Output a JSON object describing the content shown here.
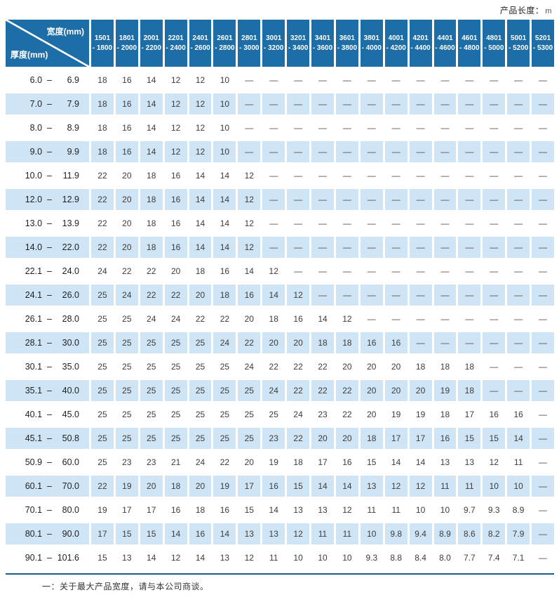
{
  "page": {
    "unit_label": "产品长度：",
    "unit": "m"
  },
  "colors": {
    "header_blue": "#1d6da6",
    "band_blue": "#cfe4f4",
    "rule_blue": "#19608f"
  },
  "table": {
    "corner": {
      "top_right": "宽度(mm)",
      "bottom_left": "厚度(mm)"
    },
    "columns": [
      {
        "line1": "1501",
        "line2": "- 1800"
      },
      {
        "line1": "1801",
        "line2": "- 2000"
      },
      {
        "line1": "2001",
        "line2": "- 2200"
      },
      {
        "line1": "2201",
        "line2": "- 2400"
      },
      {
        "line1": "2401",
        "line2": "- 2600"
      },
      {
        "line1": "2601",
        "line2": "- 2800"
      },
      {
        "line1": "2801",
        "line2": "- 3000"
      },
      {
        "line1": "3001",
        "line2": "- 3200"
      },
      {
        "line1": "3201",
        "line2": "- 3400"
      },
      {
        "line1": "3401",
        "line2": "- 3600"
      },
      {
        "line1": "3601",
        "line2": "- 3800"
      },
      {
        "line1": "3801",
        "line2": "- 4000"
      },
      {
        "line1": "4001",
        "line2": "- 4200"
      },
      {
        "line1": "4201",
        "line2": "- 4400"
      },
      {
        "line1": "4401",
        "line2": "- 4600"
      },
      {
        "line1": "4601",
        "line2": "- 4800"
      },
      {
        "line1": "4801",
        "line2": "- 5000"
      },
      {
        "line1": "5001",
        "line2": "- 5200"
      },
      {
        "line1": "5201",
        "line2": "- 5300"
      }
    ],
    "rows": [
      {
        "from": "6.0",
        "to": "6.9",
        "values": [
          "18",
          "16",
          "14",
          "12",
          "12",
          "10",
          "—",
          "—",
          "—",
          "—",
          "—",
          "—",
          "—",
          "—",
          "—",
          "—",
          "—",
          "—",
          "—"
        ]
      },
      {
        "from": "7.0",
        "to": "7.9",
        "values": [
          "18",
          "16",
          "14",
          "12",
          "12",
          "10",
          "—",
          "—",
          "—",
          "—",
          "—",
          "—",
          "—",
          "—",
          "—",
          "—",
          "—",
          "—",
          "—"
        ]
      },
      {
        "from": "8.0",
        "to": "8.9",
        "values": [
          "18",
          "16",
          "14",
          "12",
          "12",
          "10",
          "—",
          "—",
          "—",
          "—",
          "—",
          "—",
          "—",
          "—",
          "—",
          "—",
          "—",
          "—",
          "—"
        ]
      },
      {
        "from": "9.0",
        "to": "9.9",
        "values": [
          "18",
          "16",
          "14",
          "12",
          "12",
          "10",
          "—",
          "—",
          "—",
          "—",
          "—",
          "—",
          "—",
          "—",
          "—",
          "—",
          "—",
          "—",
          "—"
        ]
      },
      {
        "from": "10.0",
        "to": "11.9",
        "values": [
          "22",
          "20",
          "18",
          "16",
          "14",
          "14",
          "12",
          "—",
          "—",
          "—",
          "—",
          "—",
          "—",
          "—",
          "—",
          "—",
          "—",
          "—",
          "—"
        ]
      },
      {
        "from": "12.0",
        "to": "12.9",
        "values": [
          "22",
          "20",
          "18",
          "16",
          "14",
          "14",
          "12",
          "—",
          "—",
          "—",
          "—",
          "—",
          "—",
          "—",
          "—",
          "—",
          "—",
          "—",
          "—"
        ]
      },
      {
        "from": "13.0",
        "to": "13.9",
        "values": [
          "22",
          "20",
          "18",
          "16",
          "14",
          "14",
          "12",
          "—",
          "—",
          "—",
          "—",
          "—",
          "—",
          "—",
          "—",
          "—",
          "—",
          "—",
          "—"
        ]
      },
      {
        "from": "14.0",
        "to": "22.0",
        "values": [
          "22",
          "20",
          "18",
          "16",
          "14",
          "14",
          "12",
          "—",
          "—",
          "—",
          "—",
          "—",
          "—",
          "—",
          "—",
          "—",
          "—",
          "—",
          "—"
        ]
      },
      {
        "from": "22.1",
        "to": "24.0",
        "values": [
          "24",
          "22",
          "22",
          "20",
          "18",
          "16",
          "14",
          "12",
          "—",
          "—",
          "—",
          "—",
          "—",
          "—",
          "—",
          "—",
          "—",
          "—",
          "—"
        ]
      },
      {
        "from": "24.1",
        "to": "26.0",
        "values": [
          "25",
          "24",
          "22",
          "22",
          "20",
          "18",
          "16",
          "14",
          "12",
          "—",
          "—",
          "—",
          "—",
          "—",
          "—",
          "—",
          "—",
          "—",
          "—"
        ]
      },
      {
        "from": "26.1",
        "to": "28.0",
        "values": [
          "25",
          "25",
          "24",
          "24",
          "22",
          "22",
          "20",
          "18",
          "16",
          "14",
          "12",
          "—",
          "—",
          "—",
          "—",
          "—",
          "—",
          "—",
          "—"
        ]
      },
      {
        "from": "28.1",
        "to": "30.0",
        "values": [
          "25",
          "25",
          "25",
          "25",
          "25",
          "24",
          "22",
          "20",
          "20",
          "18",
          "18",
          "16",
          "16",
          "—",
          "—",
          "—",
          "—",
          "—",
          "—"
        ]
      },
      {
        "from": "30.1",
        "to": "35.0",
        "values": [
          "25",
          "25",
          "25",
          "25",
          "25",
          "25",
          "24",
          "22",
          "22",
          "22",
          "20",
          "20",
          "20",
          "18",
          "18",
          "18",
          "—",
          "—",
          "—"
        ]
      },
      {
        "from": "35.1",
        "to": "40.0",
        "values": [
          "25",
          "25",
          "25",
          "25",
          "25",
          "25",
          "25",
          "24",
          "22",
          "22",
          "22",
          "20",
          "20",
          "20",
          "19",
          "18",
          "—",
          "—",
          "—"
        ]
      },
      {
        "from": "40.1",
        "to": "45.0",
        "values": [
          "25",
          "25",
          "25",
          "25",
          "25",
          "25",
          "25",
          "25",
          "24",
          "23",
          "22",
          "20",
          "19",
          "19",
          "18",
          "17",
          "16",
          "16",
          "—"
        ]
      },
      {
        "from": "45.1",
        "to": "50.8",
        "values": [
          "25",
          "25",
          "25",
          "25",
          "25",
          "25",
          "25",
          "23",
          "22",
          "20",
          "20",
          "18",
          "17",
          "17",
          "16",
          "15",
          "15",
          "14",
          "—"
        ]
      },
      {
        "from": "50.9",
        "to": "60.0",
        "values": [
          "25",
          "23",
          "23",
          "21",
          "24",
          "22",
          "20",
          "19",
          "18",
          "17",
          "16",
          "15",
          "14",
          "14",
          "13",
          "13",
          "12",
          "11",
          "—"
        ]
      },
      {
        "from": "60.1",
        "to": "70.0",
        "values": [
          "22",
          "19",
          "20",
          "18",
          "20",
          "19",
          "17",
          "16",
          "15",
          "14",
          "14",
          "13",
          "12",
          "12",
          "11",
          "11",
          "10",
          "10",
          "—"
        ]
      },
      {
        "from": "70.1",
        "to": "80.0",
        "values": [
          "19",
          "17",
          "17",
          "16",
          "18",
          "16",
          "15",
          "14",
          "13",
          "13",
          "12",
          "11",
          "11",
          "10",
          "10",
          "9.7",
          "9.3",
          "8.9",
          "—"
        ]
      },
      {
        "from": "80.1",
        "to": "90.0",
        "values": [
          "17",
          "15",
          "15",
          "14",
          "16",
          "14",
          "13",
          "13",
          "12",
          "11",
          "11",
          "10",
          "9.8",
          "9.4",
          "8.9",
          "8.6",
          "8.2",
          "7.9",
          "—"
        ]
      },
      {
        "from": "90.1",
        "to": "101.6",
        "values": [
          "15",
          "13",
          "14",
          "12",
          "14",
          "13",
          "12",
          "11",
          "10",
          "10",
          "10",
          "9.3",
          "8.8",
          "8.4",
          "8.0",
          "7.7",
          "7.4",
          "7.1",
          "—"
        ]
      }
    ],
    "row_range_separator": "–"
  },
  "footer": {
    "note": "一：关于最大产品宽度，请与本公司商谈。"
  }
}
